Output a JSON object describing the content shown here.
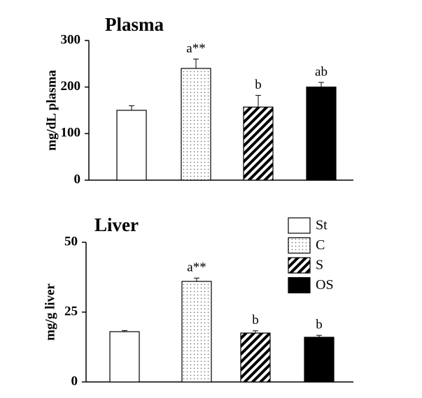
{
  "legend": [
    {
      "name": "St",
      "fill": "white"
    },
    {
      "name": "C",
      "fill": "dots"
    },
    {
      "name": "S",
      "fill": "hatch"
    },
    {
      "name": "OS",
      "fill": "black"
    }
  ],
  "chart_data": [
    {
      "type": "bar",
      "title": "Plasma",
      "y_label": "mg/dL plasma",
      "values": [
        150,
        240,
        157,
        200
      ],
      "errors": [
        10,
        20,
        25,
        10
      ],
      "annotations": [
        null,
        "a**",
        "b",
        "ab"
      ],
      "ylim": [
        0,
        300
      ],
      "yticks": [
        0,
        100,
        200,
        300
      ]
    },
    {
      "type": "bar",
      "title": "Liver",
      "y_label": "mg/g liver",
      "values": [
        18,
        36,
        17.5,
        16
      ],
      "errors": [
        0.4,
        1.2,
        0.8,
        0.7
      ],
      "annotations": [
        null,
        "a**",
        "b",
        "b"
      ],
      "ylim": [
        0,
        50
      ],
      "yticks": [
        0,
        25,
        50
      ]
    }
  ]
}
